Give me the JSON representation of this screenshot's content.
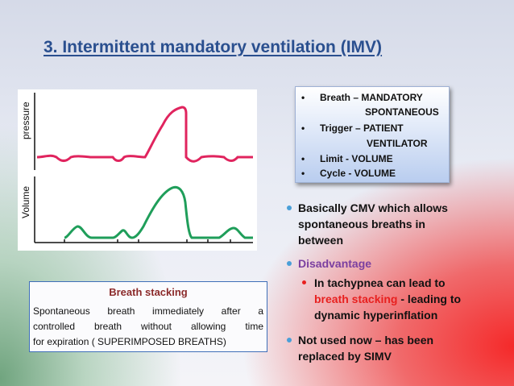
{
  "title": "3. Intermittent mandatory ventilation (IMV)",
  "graph": {
    "pressure_label": "pressure",
    "volume_label": "Volume",
    "pressure_color": "#e0245e",
    "volume_color": "#1f9e5a"
  },
  "info_box": {
    "items": [
      {
        "label": "Breath – MANDATORY",
        "continuation": "SPONTANEOUS"
      },
      {
        "label": "Trigger – PATIENT",
        "continuation": "VENTILATOR"
      },
      {
        "label": "Limit - VOLUME"
      },
      {
        "label": "Cycle - VOLUME"
      }
    ]
  },
  "bullets": {
    "b1_line1": "Basically CMV which allows",
    "b1_line2": "spontaneous breaths in",
    "b1_line3": "between",
    "b2": "Disadvantage",
    "b3_line1": "In tachypnea can lead to",
    "b3_highlight": "breath stacking",
    "b3_rest": " - leading to",
    "b3_line3": "dynamic hyperinflation",
    "b4_line1": "Not used now – has been",
    "b4_line2": "replaced by SIMV"
  },
  "breath_stacking": {
    "title": "Breath stacking",
    "line1": "Spontaneous breath immediately after a",
    "line2": "controlled breath without allowing time",
    "line3": "for expiration ( SUPERIMPOSED BREATHS)"
  },
  "colors": {
    "title": "#2a4f8f",
    "bullet": "#4a9fd8",
    "disadvantage": "#7b3fa0",
    "highlight": "#e8201f",
    "stack_title": "#8b2a2a"
  }
}
